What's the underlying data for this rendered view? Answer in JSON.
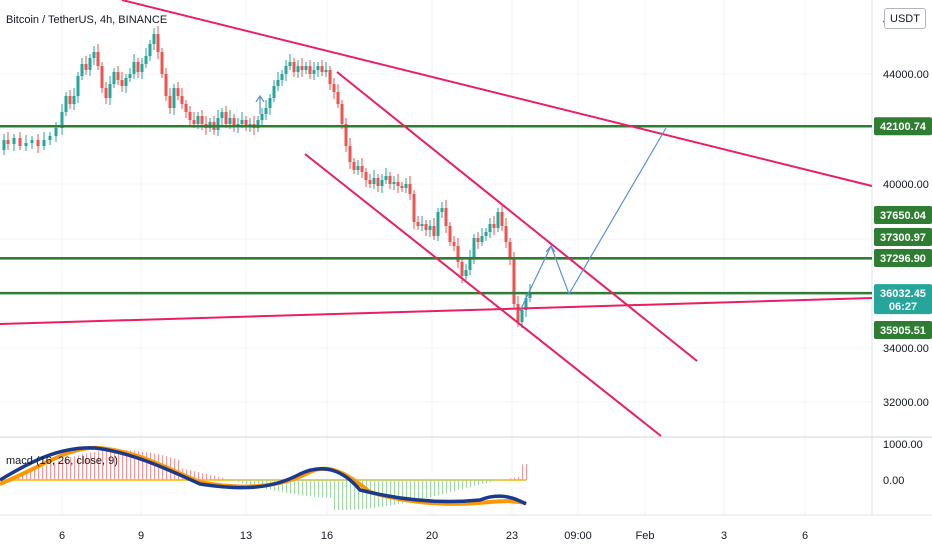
{
  "header": {
    "title": "Bitcoin / TetherUS, 4h, BINANCE",
    "currency_badge": "USDT"
  },
  "chart_data": [
    {
      "type": "candlestick",
      "title": "Bitcoin / TetherUS, 4h, BINANCE",
      "y_axis_ticks": [
        "44000.00",
        "40000.00",
        "34000.00",
        "32000.00"
      ],
      "y_axis_partial_tick": "4",
      "x_axis_ticks": [
        "6",
        "9",
        "13",
        "16",
        "20",
        "23",
        "09:00",
        "Feb",
        "3",
        "6"
      ],
      "price_tags": [
        {
          "label": "42100.74",
          "color": "#2e7d32",
          "value": 42100.74
        },
        {
          "label": "37650.04",
          "color": "#2e7d32",
          "value": 37650.04
        },
        {
          "label": "37300.97",
          "color": "#2e7d32",
          "value": 37300.97
        },
        {
          "label": "37296.90",
          "color": "#2e7d32",
          "value": 37296.9
        },
        {
          "label": "36032.45",
          "sublabel": "06:27",
          "color": "#26a69a",
          "value": 36032.45
        },
        {
          "label": "35905.51",
          "color": "#2e7d32",
          "value": 35905.51
        }
      ],
      "horizontal_levels": [
        42100.74,
        37300.97,
        37296.9,
        36032.45
      ],
      "colors": {
        "up": "#26a69a",
        "down": "#ef5350",
        "level": "#2e7d32",
        "trend": "#e91e63",
        "projection": "#5b8fd9"
      }
    },
    {
      "type": "macd",
      "label": "macd (16, 26, close, 9)",
      "y_axis_ticks": [
        "1000.00",
        "0.00"
      ],
      "colors": {
        "macd": "#1a3a8f",
        "signal": "#ff9800",
        "hist_pos": "#ef9a9a",
        "hist_neg": "#a5d6a7"
      }
    }
  ]
}
